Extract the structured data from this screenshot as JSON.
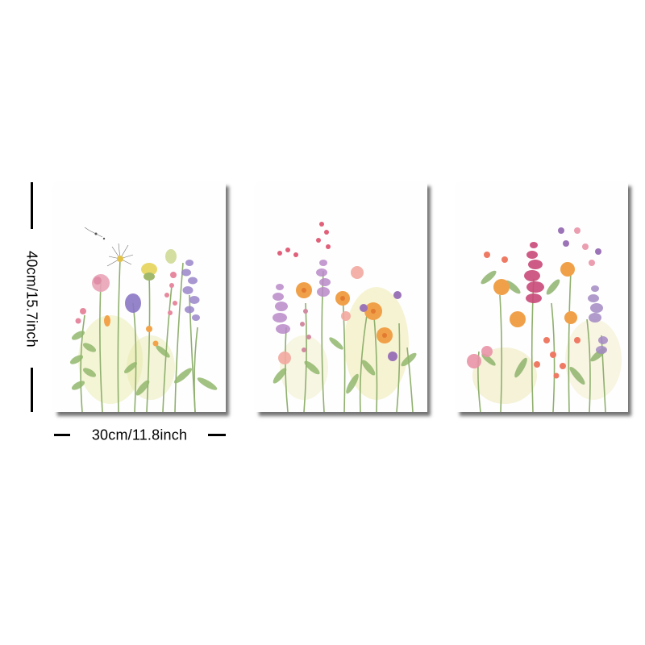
{
  "dimensions": {
    "height_label": "40cm/15.7inch",
    "width_label": "30cm/11.8inch"
  },
  "prints": [
    {
      "subject": "watercolor wildflowers with dandelion, clover and lavender"
    },
    {
      "subject": "watercolor wildflowers with pink lupines and orange daisies"
    },
    {
      "subject": "watercolor wildflowers with magenta lupines and coral blossoms"
    }
  ],
  "colors": {
    "background": "#ffffff",
    "print_paper": "#fefefe",
    "shadow": "#000000",
    "stem_green": "#7fa86a",
    "yellow_green": "#d8dc8c",
    "lavender": "#a57fc2",
    "pink": "#e58aa6",
    "orange": "#f0a048",
    "magenta": "#c94a78",
    "coral": "#ef7a64"
  }
}
